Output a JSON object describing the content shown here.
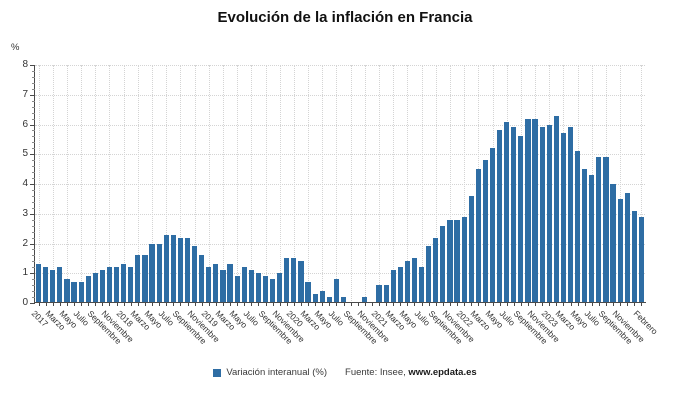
{
  "title": "Evolución de la inflación en Francia",
  "y_unit_label": "%",
  "footer": {
    "legend_label": "Variación interanual (%)",
    "source_prefix": "Fuente: Insee, ",
    "source_site": "www.epdata.es"
  },
  "colors": {
    "bar": "#2e6da4",
    "grid": "#d4d4d4",
    "axis": "#4a4a4a",
    "text": "#333333"
  },
  "chart_data": {
    "type": "bar",
    "title": "Evolución de la inflación en Francia",
    "xlabel": "",
    "ylabel": "%",
    "ylim": [
      0,
      8
    ],
    "y_ticks": [
      0,
      1,
      2,
      3,
      4,
      5,
      6,
      7,
      8
    ],
    "grid": true,
    "legend_position": "bottom",
    "series_name": "Variación interanual (%)",
    "categories": [
      "2017",
      "",
      "Marzo",
      "",
      "Mayo",
      "",
      "Julio",
      "",
      "Septiembre",
      "",
      "Noviembre",
      "",
      "2018",
      "",
      "Marzo",
      "",
      "Mayo",
      "",
      "Julio",
      "",
      "Septiembre",
      "",
      "Noviembre",
      "",
      "2019",
      "",
      "Marzo",
      "",
      "Mayo",
      "",
      "Julio",
      "",
      "Septiembre",
      "",
      "Noviembre",
      "",
      "2020",
      "",
      "Marzo",
      "",
      "Mayo",
      "",
      "Julio",
      "",
      "Septiembre",
      "",
      "Noviembre",
      "",
      "2021",
      "",
      "Marzo",
      "",
      "Mayo",
      "",
      "Julio",
      "",
      "Septiembre",
      "",
      "Noviembre",
      "",
      "2022",
      "",
      "Marzo",
      "",
      "Mayo",
      "",
      "Julio",
      "",
      "Septiembre",
      "",
      "Noviembre",
      "",
      "2023",
      "",
      "Marzo",
      "",
      "Mayo",
      "",
      "Julio",
      "",
      "Septiembre",
      "",
      "Noviembre",
      "",
      "",
      "Febrero"
    ],
    "values": [
      1.3,
      1.2,
      1.1,
      1.2,
      0.8,
      0.7,
      0.7,
      0.9,
      1.0,
      1.1,
      1.2,
      1.2,
      1.3,
      1.2,
      1.6,
      1.6,
      2.0,
      2.0,
      2.3,
      2.3,
      2.2,
      2.2,
      1.9,
      1.6,
      1.2,
      1.3,
      1.1,
      1.3,
      0.9,
      1.2,
      1.1,
      1.0,
      0.9,
      0.8,
      1.0,
      1.5,
      1.5,
      1.4,
      0.7,
      0.3,
      0.4,
      0.2,
      0.8,
      0.2,
      0.0,
      0.0,
      0.2,
      0.0,
      0.6,
      0.6,
      1.1,
      1.2,
      1.4,
      1.5,
      1.2,
      1.9,
      2.2,
      2.6,
      2.8,
      2.8,
      2.9,
      3.6,
      4.5,
      4.8,
      5.2,
      5.8,
      6.1,
      5.9,
      5.6,
      6.2,
      6.2,
      5.9,
      6.0,
      6.3,
      5.7,
      5.9,
      5.1,
      4.5,
      4.3,
      4.9,
      4.9,
      4.0,
      3.5,
      3.7,
      3.1,
      2.9
    ]
  }
}
